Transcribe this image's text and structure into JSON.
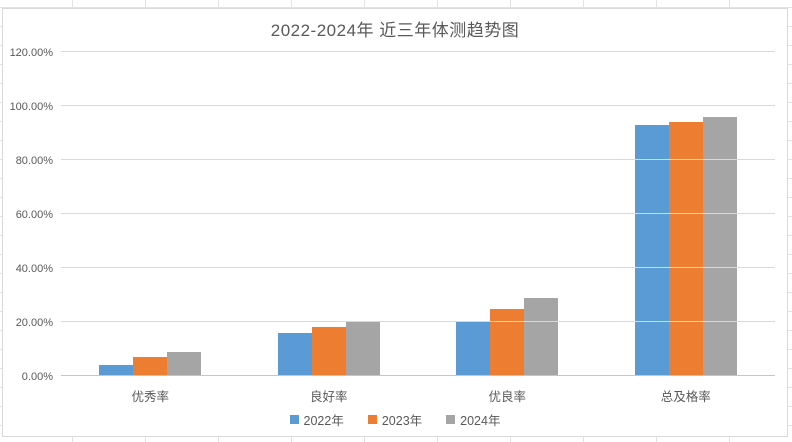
{
  "chart_data": {
    "type": "bar",
    "title": "2022-2024年 近三年体测趋势图",
    "categories": [
      "优秀率",
      "良好率",
      "优良率",
      "总及格率"
    ],
    "series": [
      {
        "name": "2022年",
        "color": "#5B9BD5",
        "values": [
          4,
          16,
          20,
          93
        ]
      },
      {
        "name": "2023年",
        "color": "#ED7D31",
        "values": [
          7,
          18,
          25,
          94
        ]
      },
      {
        "name": "2024年",
        "color": "#A5A5A5",
        "values": [
          9,
          20,
          29,
          96
        ]
      }
    ],
    "value_unit": "percent",
    "xlabel": "",
    "ylabel": "",
    "y_axis": {
      "min": 0,
      "max": 120,
      "step": 20,
      "tick_labels": [
        "0.00%",
        "20.00%",
        "40.00%",
        "60.00%",
        "80.00%",
        "100.00%",
        "120.00%"
      ]
    },
    "grid": true,
    "legend_position": "bottom"
  },
  "colors": {
    "text": "#595959",
    "gridline": "#D9D9D9",
    "axis_line": "#C6C6C6",
    "chart_border": "#D9D9D9",
    "worksheet_grid": "#E2E2E2"
  }
}
